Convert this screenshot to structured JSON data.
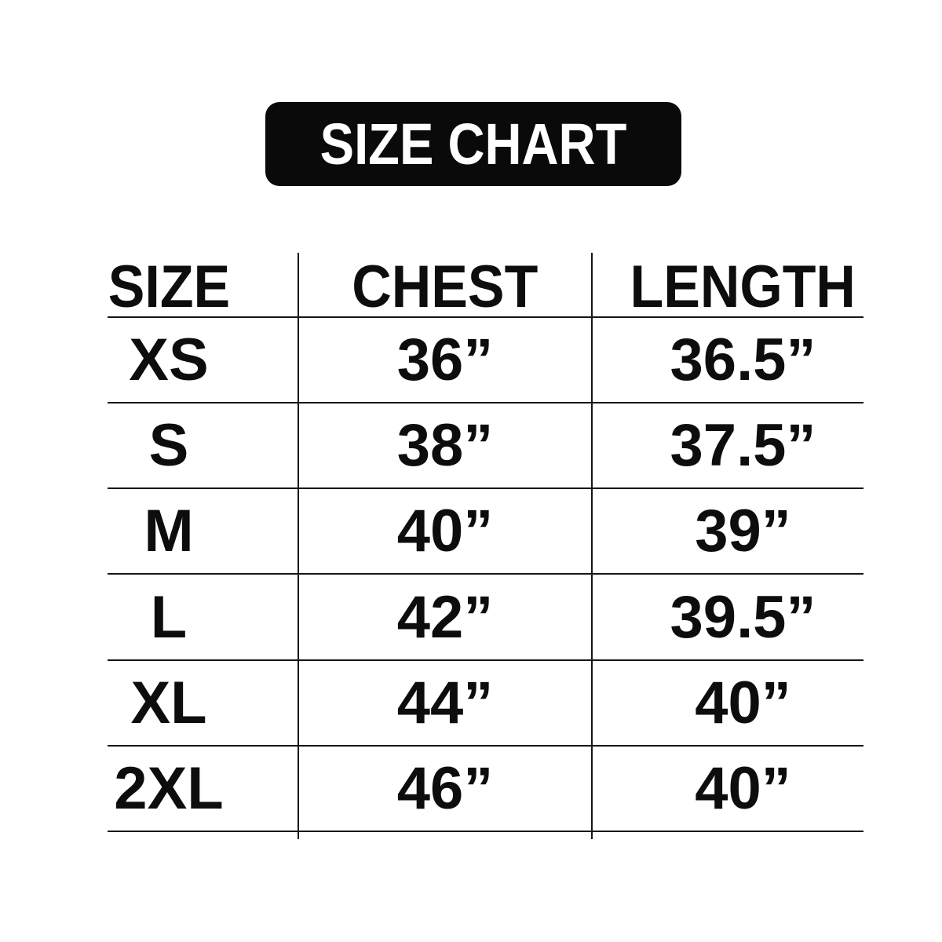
{
  "badge": {
    "label": "SIZE CHART"
  },
  "chart_data": {
    "type": "table",
    "title": "SIZE CHART",
    "columns": [
      "SIZE",
      "CHEST",
      "LENGTH"
    ],
    "rows": [
      [
        "XS",
        "36”",
        "36.5”"
      ],
      [
        "S",
        "38”",
        "37.5”"
      ],
      [
        "M",
        "40”",
        "39”"
      ],
      [
        "L",
        "42”",
        "39.5”"
      ],
      [
        "XL",
        "44”",
        "40”"
      ],
      [
        "2XL",
        "46”",
        "40”"
      ]
    ],
    "units": "inches",
    "layout": {
      "grid": "horizontal and vertical rules, no outer frame"
    }
  },
  "colors": {
    "background": "#ffffff",
    "badge_bg": "#0a0a0a",
    "badge_text": "#ffffff",
    "line": "#161616",
    "text": "#0d0d0d"
  }
}
